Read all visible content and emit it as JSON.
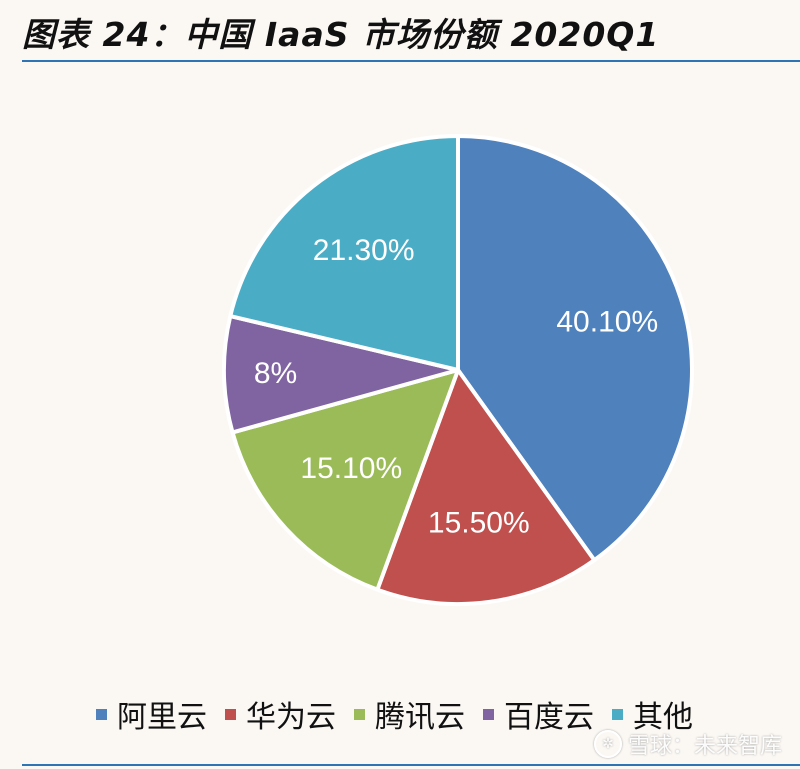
{
  "title": "图表 24：中国 IaaS 市场份额 2020Q1",
  "chart_data": {
    "type": "pie",
    "slices": [
      {
        "name": "阿里云",
        "value": 40.1,
        "label": "40.10%",
        "color": "#4f81bd"
      },
      {
        "name": "华为云",
        "value": 15.5,
        "label": "15.50%",
        "color": "#c0504d"
      },
      {
        "name": "腾讯云",
        "value": 15.1,
        "label": "15.10%",
        "color": "#9bbb59"
      },
      {
        "name": "百度云",
        "value": 8,
        "label": "8%",
        "color": "#8064a2"
      },
      {
        "name": "其他",
        "value": 21.3,
        "label": "21.30%",
        "color": "#4bacc6"
      }
    ],
    "start": "12 o'clock",
    "direction": "clockwise",
    "legend_position": "bottom"
  },
  "watermark": {
    "text": "雪球：未来智库",
    "icon": "snowball-logo-icon"
  }
}
